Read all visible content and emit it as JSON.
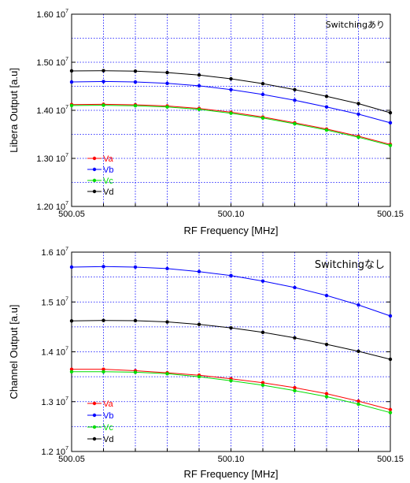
{
  "chart_data": [
    {
      "type": "line",
      "annotation": "Switchingあり",
      "xlabel": "RF Frequency [MHz]",
      "ylabel": "Libera Output [a.u]",
      "xlim": [
        500.05,
        500.15
      ],
      "ylim": [
        12000000,
        16000000
      ],
      "x_ticks": [
        "500.05",
        "500.10",
        "500.15"
      ],
      "y_ticks": [
        {
          "mantissa": "1.20",
          "exp": "7",
          "value": 12000000
        },
        {
          "mantissa": "1.30",
          "exp": "7",
          "value": 13000000
        },
        {
          "mantissa": "1.40",
          "exp": "7",
          "value": 14000000
        },
        {
          "mantissa": "1.50",
          "exp": "7",
          "value": 15000000
        },
        {
          "mantissa": "1.60",
          "exp": "7",
          "value": 16000000
        }
      ],
      "grid": true,
      "legend_position": "bottom-left",
      "x": [
        500.05,
        500.06,
        500.07,
        500.08,
        500.09,
        500.1,
        500.11,
        500.12,
        500.13,
        500.14,
        500.15
      ],
      "series": [
        {
          "name": "Va",
          "color": "#ff0000",
          "values": [
            14120000,
            14125000,
            14115000,
            14090000,
            14040000,
            13960000,
            13860000,
            13740000,
            13610000,
            13460000,
            13290000
          ]
        },
        {
          "name": "Vb",
          "color": "#0000ff",
          "values": [
            14590000,
            14600000,
            14590000,
            14560000,
            14510000,
            14430000,
            14330000,
            14210000,
            14070000,
            13920000,
            13740000
          ]
        },
        {
          "name": "Vc",
          "color": "#00dd00",
          "values": [
            14100000,
            14105000,
            14095000,
            14070000,
            14020000,
            13940000,
            13840000,
            13720000,
            13590000,
            13440000,
            13270000
          ]
        },
        {
          "name": "Vd",
          "color": "#000000",
          "values": [
            14820000,
            14825000,
            14815000,
            14785000,
            14735000,
            14655000,
            14555000,
            14430000,
            14290000,
            14140000,
            13950000
          ]
        }
      ]
    },
    {
      "type": "line",
      "annotation": "Switchingなし",
      "xlabel": "RF Frequency [MHz]",
      "ylabel": "Channel Output [a.u]",
      "xlim": [
        500.05,
        500.15
      ],
      "ylim": [
        12000000,
        16000000
      ],
      "x_ticks": [
        "500.05",
        "500.10",
        "500.15"
      ],
      "y_ticks": [
        {
          "mantissa": "1.2",
          "exp": "7",
          "value": 12000000
        },
        {
          "mantissa": "1.3",
          "exp": "7",
          "value": 13000000
        },
        {
          "mantissa": "1.4",
          "exp": "7",
          "value": 14000000
        },
        {
          "mantissa": "1.5",
          "exp": "7",
          "value": 15000000
        },
        {
          "mantissa": "1.6",
          "exp": "7",
          "value": 16000000
        }
      ],
      "grid": true,
      "legend_position": "bottom-left",
      "x": [
        500.05,
        500.06,
        500.07,
        500.08,
        500.09,
        500.1,
        500.11,
        500.12,
        500.13,
        500.14,
        500.15
      ],
      "series": [
        {
          "name": "Va",
          "color": "#ff0000",
          "values": [
            13650000,
            13650000,
            13620000,
            13580000,
            13530000,
            13460000,
            13380000,
            13280000,
            13160000,
            13010000,
            12840000
          ]
        },
        {
          "name": "Vb",
          "color": "#0000ff",
          "values": [
            15700000,
            15710000,
            15700000,
            15670000,
            15610000,
            15530000,
            15420000,
            15290000,
            15130000,
            14940000,
            14720000
          ]
        },
        {
          "name": "Vc",
          "color": "#00dd00",
          "values": [
            13600000,
            13600000,
            13590000,
            13560000,
            13500000,
            13420000,
            13330000,
            13220000,
            13100000,
            12950000,
            12780000
          ]
        },
        {
          "name": "Vd",
          "color": "#000000",
          "values": [
            14620000,
            14630000,
            14625000,
            14600000,
            14550000,
            14480000,
            14390000,
            14280000,
            14150000,
            14010000,
            13850000
          ]
        }
      ]
    }
  ]
}
